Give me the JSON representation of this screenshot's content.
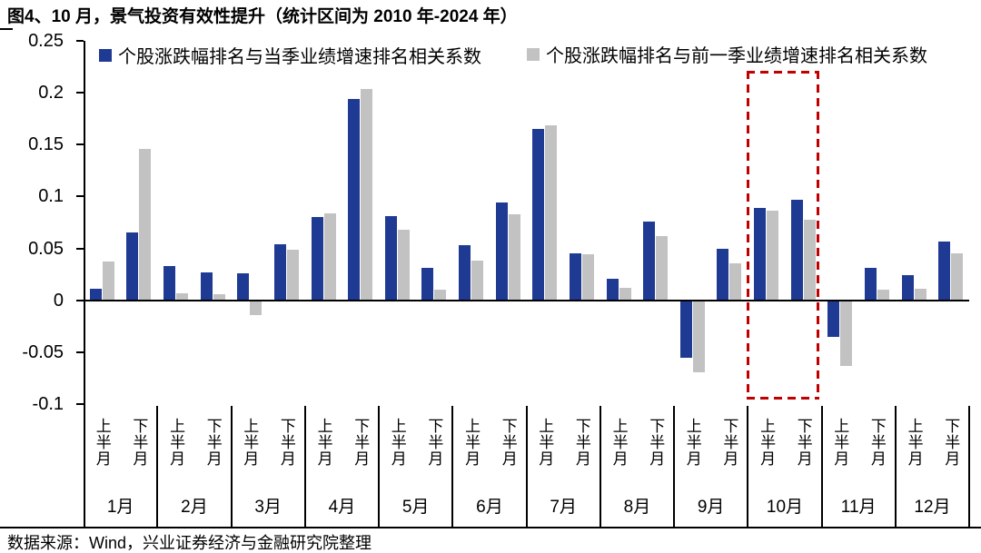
{
  "title": "图4、10 月，景气投资有效性提升（统计区间为 2010 年-2024 年）",
  "source_note": "数据来源：Wind，兴业证券经济与金融研究院整理",
  "colors": {
    "current_quarter_bar": "#1E3A93",
    "previous_quarter_bar": "#C2C2C2",
    "highlight_box": "#C00000",
    "axis": "#000000"
  },
  "legend": [
    {
      "label": "个股涨跌幅排名与当季业绩增速排名相关系数",
      "color": "#1E3A93"
    },
    {
      "label": "个股涨跌幅排名与前一季业绩增速排名相关系数",
      "color": "#C2C2C2"
    }
  ],
  "chart_data": {
    "type": "bar",
    "title": "图4、10 月，景气投资有效性提升（统计区间为 2010 年-2024 年）",
    "xlabel": "",
    "ylabel": "",
    "ylim": [
      -0.1,
      0.25
    ],
    "y_ticks": [
      0.25,
      0.2,
      0.15,
      0.1,
      0.05,
      0,
      -0.05,
      -0.1
    ],
    "y_tick_labels": [
      "0.25",
      "0.2",
      "0.15",
      "0.1",
      "0.05",
      "0",
      "-0.05",
      "-0.1"
    ],
    "grid": false,
    "legend_position": "top",
    "months": [
      "1月",
      "2月",
      "3月",
      "4月",
      "5月",
      "6月",
      "7月",
      "8月",
      "9月",
      "10月",
      "11月",
      "12月"
    ],
    "half_month_labels": [
      "上半月",
      "下半月"
    ],
    "highlight": {
      "month": "10月",
      "month_index": 9,
      "style": "red-dashed-rectangle"
    },
    "series": [
      {
        "name": "个股涨跌幅排名与当季业绩增速排名相关系数",
        "color": "#1E3A93",
        "values": [
          0.011,
          0.065,
          0.033,
          0.027,
          0.026,
          0.054,
          0.08,
          0.194,
          0.081,
          0.031,
          0.053,
          0.094,
          0.165,
          0.045,
          0.021,
          0.076,
          -0.055,
          0.05,
          0.089,
          0.097,
          -0.035,
          0.031,
          0.024,
          0.057
        ]
      },
      {
        "name": "个股涨跌幅排名与前一季业绩增速排名相关系数",
        "color": "#C2C2C2",
        "values": [
          0.037,
          0.146,
          0.007,
          0.006,
          -0.014,
          0.049,
          0.084,
          0.204,
          0.068,
          0.01,
          0.038,
          0.083,
          0.169,
          0.044,
          0.012,
          0.062,
          -0.069,
          0.036,
          0.086,
          0.078,
          -0.063,
          0.01,
          0.011,
          0.045
        ]
      }
    ]
  }
}
